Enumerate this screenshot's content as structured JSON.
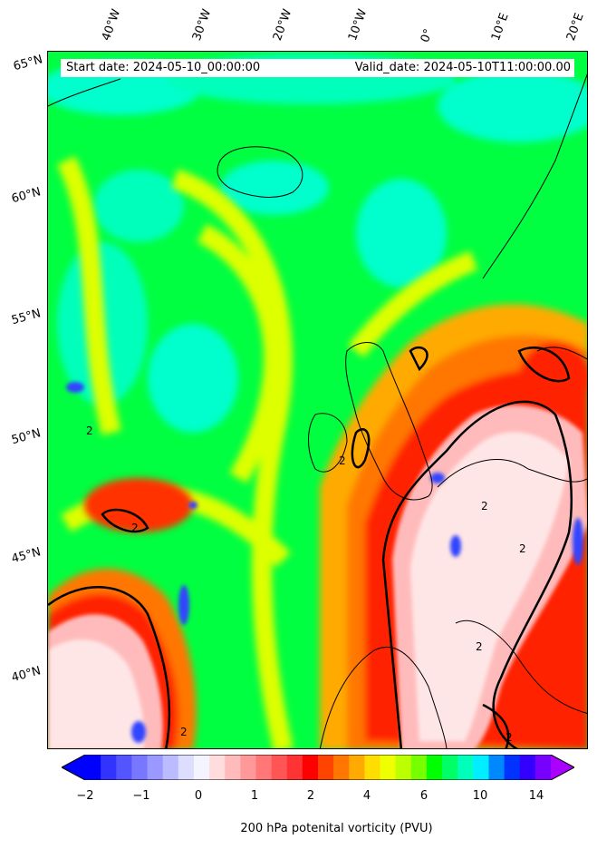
{
  "map": {
    "header": {
      "start_date": "Start date: 2024-05-10_00:00:00",
      "valid_date": "Valid_date: 2024-05-10T11:00:00.00"
    },
    "longitude_labels": [
      "40°W",
      "30°W",
      "20°W",
      "10°W",
      "0°",
      "10°E",
      "20°E"
    ],
    "latitude_labels": [
      "65°N",
      "60°N",
      "55°N",
      "50°N",
      "45°N",
      "40°N"
    ],
    "contour_label": "2",
    "colorbar": {
      "label": "200 hPa potenital vorticity (PVU)",
      "ticks": [
        "−2",
        "−1",
        "0",
        "1",
        "2",
        "4",
        "6",
        "10",
        "14"
      ],
      "colors": [
        "#0000ff",
        "#3333ff",
        "#5555ff",
        "#7777ff",
        "#9999ff",
        "#bbbbff",
        "#ddddff",
        "#f4f4ff",
        "#ffdddd",
        "#ffbbbb",
        "#ff9999",
        "#ff7777",
        "#ff5555",
        "#ff3333",
        "#ff0000",
        "#ff4400",
        "#ff7700",
        "#ffaa00",
        "#ffdd00",
        "#eeff00",
        "#bbff00",
        "#77ff00",
        "#00ff00",
        "#00ff66",
        "#00ffbb",
        "#00eeff",
        "#0088ff",
        "#0033ff",
        "#3300ff",
        "#7700ff"
      ],
      "extend_low_color": "#0000ff",
      "extend_high_color": "#aa00ff"
    },
    "palette": {
      "background_green": "#00ff40",
      "cyan": "#00ffcc",
      "yellow": "#ddff00",
      "orange": "#ff8800",
      "red": "#ff1a00",
      "pink": "#ffbbbb",
      "white_pink": "#fff0f0",
      "blue": "#3344ff"
    }
  }
}
